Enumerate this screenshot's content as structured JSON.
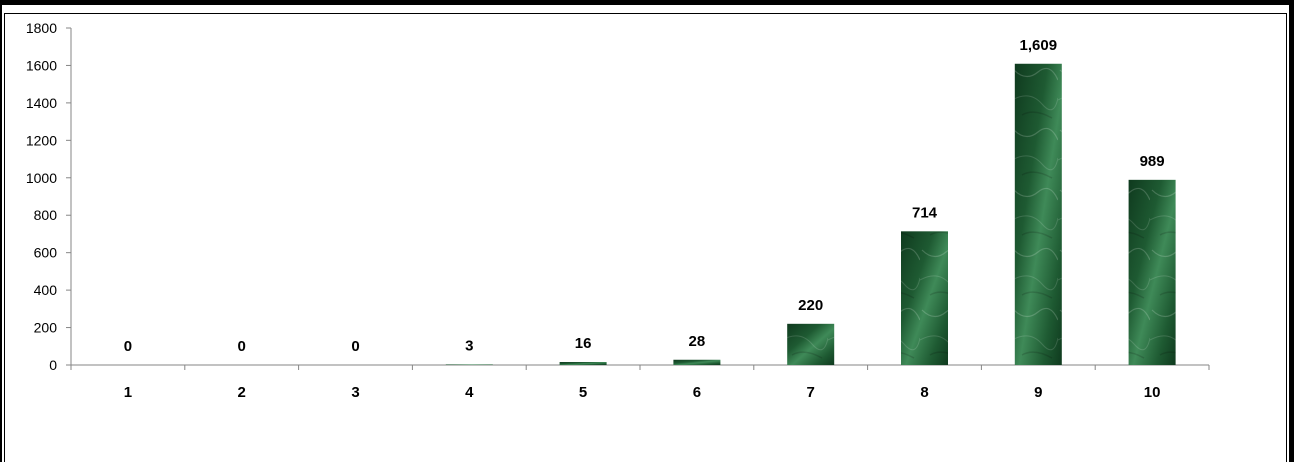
{
  "chart_data": {
    "type": "bar",
    "categories": [
      "1",
      "2",
      "3",
      "4",
      "5",
      "6",
      "7",
      "8",
      "9",
      "10"
    ],
    "values": [
      0,
      0,
      0,
      3,
      16,
      28,
      220,
      714,
      1609,
      989
    ],
    "value_labels": [
      "0",
      "0",
      "0",
      "3",
      "16",
      "28",
      "220",
      "714",
      "1,609",
      "989"
    ],
    "y_ticks": [
      "0",
      "200",
      "400",
      "600",
      "800",
      "1000",
      "1200",
      "1400",
      "1600",
      "1800"
    ],
    "ylim": [
      0,
      1800
    ],
    "grid": false,
    "legend": "none",
    "bar_color": "#1e5a32",
    "bar_color_light": "#3f8a58",
    "bar_color_dark": "#0f3a1e"
  }
}
